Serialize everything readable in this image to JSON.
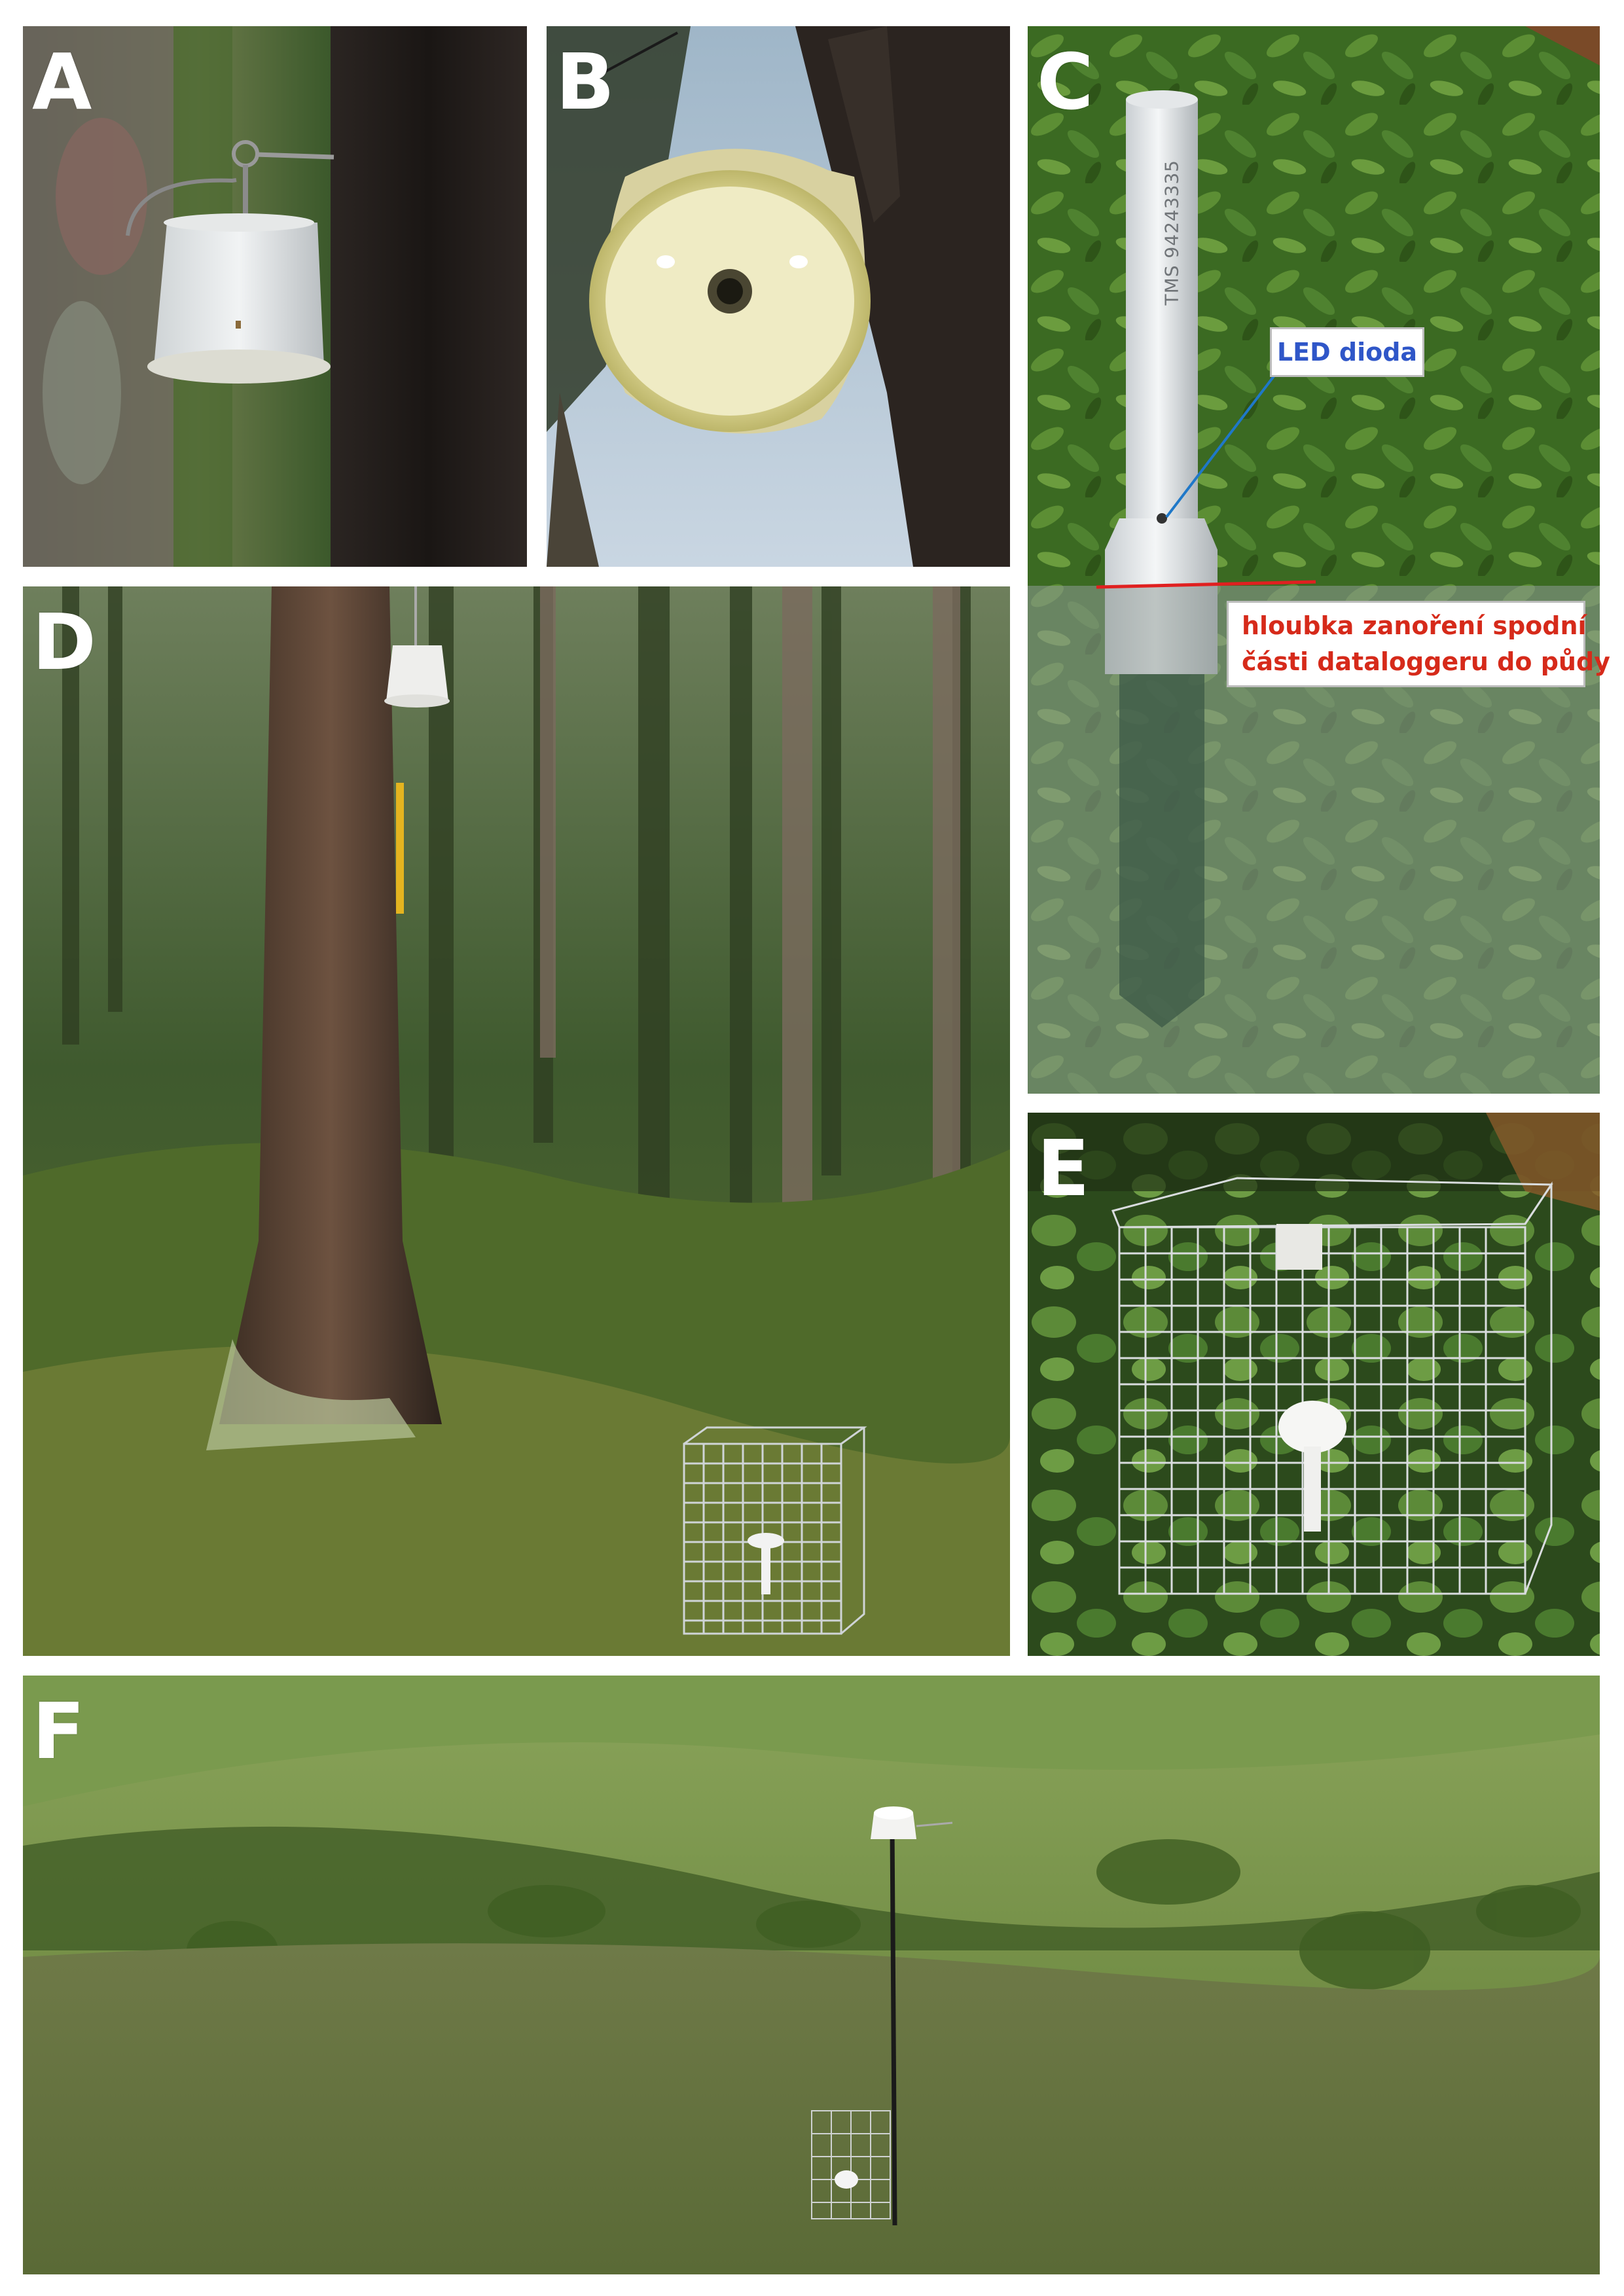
{
  "panels": [
    {
      "id": "A",
      "label": "A"
    },
    {
      "id": "B",
      "label": "B"
    },
    {
      "id": "C",
      "label": "C"
    },
    {
      "id": "D",
      "label": "D"
    },
    {
      "id": "E",
      "label": "E"
    },
    {
      "id": "F",
      "label": "F"
    }
  ],
  "annotations": {
    "serial_number": "TMS 94243335",
    "led_label": "LED dioda",
    "depth_label_line1": "hloubka zanoření spodní",
    "depth_label_line2": "části dataloggeru do půdy"
  },
  "colors": {
    "led_text": "#2f56c8",
    "depth_text": "#d62a1a",
    "depth_line": "#e02020",
    "leader_line": "#1f78c8"
  }
}
